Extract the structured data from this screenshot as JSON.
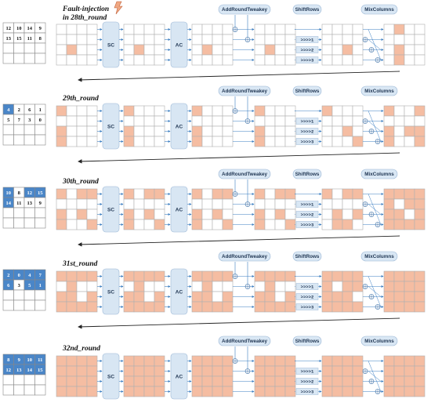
{
  "figure": {
    "fault_label": [
      "Fault-injection",
      "in 28th_round"
    ],
    "op_labels": {
      "sc": "SC",
      "ac": "AC",
      "art": "AddRoundTweakey",
      "shiftrows": "ShiftRows",
      "mixcolumns": "MixColumns",
      "shifts": [
        ">>>>1",
        ">>>>2",
        ">>>>3"
      ]
    },
    "colors": {
      "fault_cell": "#f5bda2",
      "key_cell": "#4a86c8",
      "sbox_fill": "#d8e6f3",
      "pill_fill": "#d9e7f4",
      "grid_line": "#b0b0b0",
      "arrow": "#3b7ec2"
    },
    "rows": [
      {
        "label": "",
        "key_nums": [
          12,
          10,
          14,
          9,
          13,
          15,
          11,
          8
        ],
        "key_blue": [
          0,
          0,
          0,
          0,
          0,
          0,
          0,
          0
        ],
        "states": [
          [
            0,
            0,
            0,
            0,
            0,
            0,
            0,
            0,
            0,
            1,
            0,
            0,
            0,
            0,
            0,
            0
          ],
          [
            0,
            0,
            0,
            0,
            0,
            0,
            0,
            0,
            0,
            1,
            0,
            0,
            0,
            0,
            0,
            0
          ],
          [
            0,
            0,
            0,
            0,
            0,
            0,
            0,
            0,
            0,
            1,
            0,
            0,
            0,
            0,
            0,
            0
          ],
          [
            0,
            0,
            0,
            0,
            0,
            0,
            0,
            0,
            0,
            1,
            0,
            0,
            0,
            0,
            0,
            0
          ],
          [
            0,
            0,
            0,
            0,
            0,
            0,
            0,
            0,
            0,
            0,
            1,
            0,
            0,
            0,
            0,
            0
          ],
          [
            0,
            1,
            0,
            0,
            0,
            0,
            0,
            0,
            0,
            1,
            0,
            0,
            0,
            1,
            0,
            0
          ]
        ]
      },
      {
        "label": "29th_round",
        "key_nums": [
          4,
          2,
          6,
          1,
          5,
          7,
          3,
          0
        ],
        "key_blue": [
          1,
          0,
          0,
          0,
          0,
          0,
          0,
          0
        ],
        "states": [
          [
            1,
            0,
            0,
            0,
            0,
            0,
            0,
            0,
            1,
            0,
            0,
            0,
            1,
            0,
            0,
            0
          ],
          [
            1,
            0,
            0,
            0,
            0,
            0,
            0,
            0,
            1,
            0,
            0,
            0,
            1,
            0,
            0,
            0
          ],
          [
            1,
            0,
            0,
            0,
            0,
            0,
            0,
            0,
            1,
            0,
            0,
            0,
            1,
            0,
            0,
            0
          ],
          [
            1,
            0,
            0,
            0,
            0,
            0,
            0,
            0,
            1,
            0,
            0,
            0,
            1,
            0,
            0,
            0
          ],
          [
            1,
            0,
            0,
            0,
            0,
            0,
            0,
            0,
            0,
            0,
            1,
            0,
            0,
            0,
            0,
            1
          ],
          [
            1,
            0,
            0,
            1,
            0,
            0,
            0,
            0,
            1,
            0,
            1,
            1,
            1,
            0,
            0,
            1
          ]
        ]
      },
      {
        "label": "30th_round",
        "key_nums": [
          10,
          8,
          12,
          15,
          14,
          11,
          13,
          9
        ],
        "key_blue": [
          1,
          0,
          1,
          1,
          1,
          0,
          0,
          0
        ],
        "states": [
          [
            1,
            0,
            1,
            1,
            0,
            0,
            0,
            0,
            1,
            0,
            1,
            0,
            1,
            0,
            0,
            1
          ],
          [
            1,
            0,
            1,
            1,
            0,
            0,
            0,
            0,
            1,
            0,
            1,
            0,
            1,
            0,
            0,
            1
          ],
          [
            1,
            0,
            1,
            1,
            0,
            0,
            0,
            0,
            1,
            0,
            1,
            0,
            1,
            0,
            0,
            1
          ],
          [
            1,
            0,
            1,
            1,
            0,
            0,
            0,
            0,
            1,
            0,
            1,
            0,
            1,
            0,
            0,
            1
          ],
          [
            1,
            0,
            1,
            1,
            0,
            0,
            0,
            0,
            0,
            1,
            0,
            1,
            0,
            1,
            1,
            0
          ],
          [
            1,
            1,
            1,
            1,
            1,
            0,
            1,
            1,
            1,
            1,
            0,
            1,
            1,
            1,
            1,
            1
          ]
        ]
      },
      {
        "label": "31st_round",
        "key_nums": [
          2,
          0,
          4,
          7,
          6,
          3,
          5,
          1
        ],
        "key_blue": [
          1,
          1,
          1,
          1,
          1,
          0,
          1,
          1
        ],
        "states": [
          [
            1,
            1,
            1,
            1,
            0,
            1,
            0,
            0,
            1,
            1,
            0,
            1,
            1,
            1,
            1,
            1
          ],
          [
            1,
            1,
            1,
            1,
            0,
            1,
            0,
            0,
            1,
            1,
            0,
            1,
            1,
            1,
            1,
            1
          ],
          [
            1,
            1,
            1,
            1,
            0,
            1,
            0,
            0,
            1,
            1,
            0,
            1,
            1,
            1,
            1,
            1
          ],
          [
            1,
            1,
            1,
            1,
            0,
            1,
            0,
            0,
            1,
            1,
            0,
            1,
            1,
            1,
            1,
            1
          ],
          [
            1,
            1,
            1,
            1,
            1,
            0,
            1,
            1,
            1,
            1,
            1,
            0,
            1,
            1,
            1,
            1
          ],
          [
            1,
            1,
            1,
            1,
            1,
            1,
            1,
            1,
            1,
            1,
            1,
            1,
            1,
            1,
            1,
            1
          ]
        ]
      },
      {
        "label": "32nd_round",
        "key_nums": [
          8,
          9,
          10,
          11,
          12,
          13,
          14,
          15
        ],
        "key_blue": [
          1,
          1,
          1,
          1,
          1,
          1,
          1,
          1
        ],
        "states": [
          [
            1,
            1,
            1,
            1,
            1,
            1,
            1,
            1,
            1,
            1,
            1,
            1,
            1,
            1,
            1,
            1
          ],
          [
            1,
            1,
            1,
            1,
            1,
            1,
            1,
            1,
            1,
            1,
            1,
            1,
            1,
            1,
            1,
            1
          ],
          [
            1,
            1,
            1,
            1,
            1,
            1,
            1,
            1,
            1,
            1,
            1,
            1,
            1,
            1,
            1,
            1
          ],
          [
            1,
            1,
            1,
            1,
            1,
            1,
            1,
            1,
            1,
            1,
            1,
            1,
            1,
            1,
            1,
            1
          ],
          [
            1,
            1,
            1,
            1,
            1,
            1,
            1,
            1,
            1,
            1,
            1,
            1,
            1,
            1,
            1,
            1
          ],
          [
            1,
            1,
            1,
            1,
            1,
            1,
            1,
            1,
            1,
            1,
            1,
            1,
            1,
            1,
            1,
            1
          ]
        ]
      }
    ]
  }
}
